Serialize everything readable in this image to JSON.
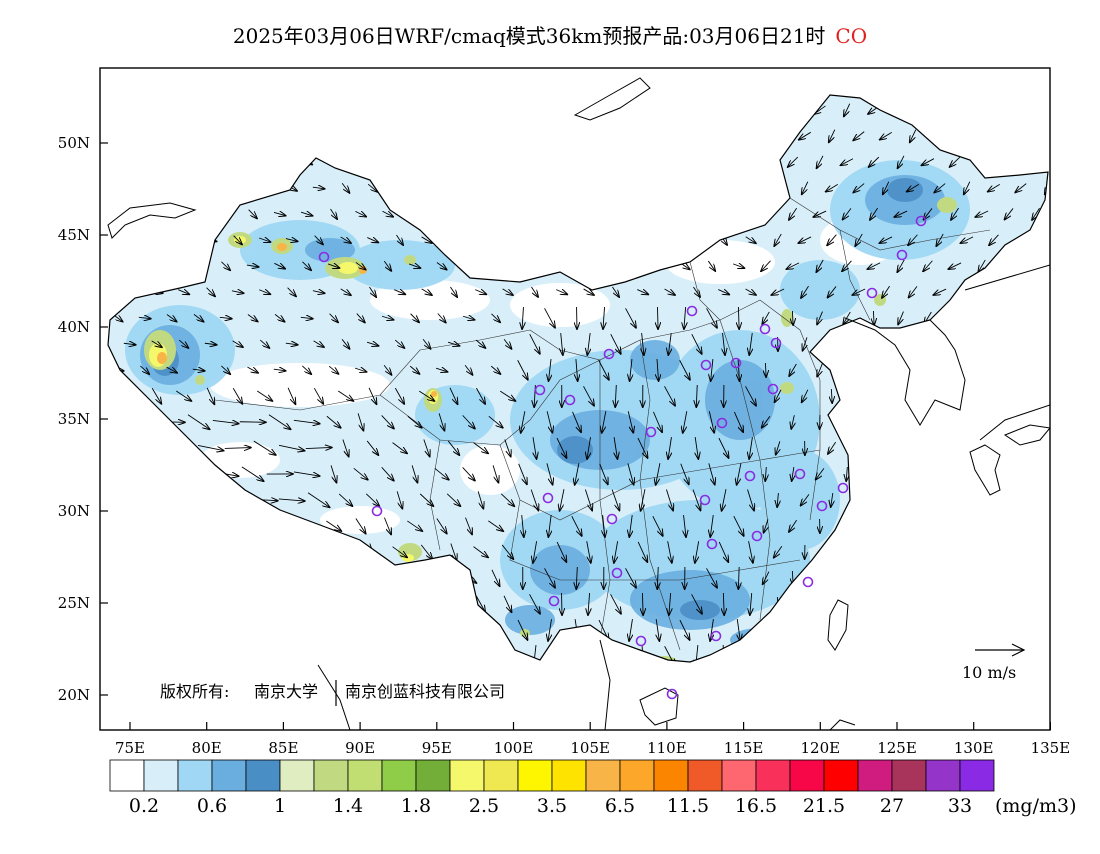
{
  "title": {
    "main": "2025年03月06日WRF/cmaq模式36km预报产品:03月06日21时",
    "species": "CO"
  },
  "copyright": {
    "prefix": "版权所有:",
    "org1": "南京大学",
    "org2": "南京创蓝科技有限公司"
  },
  "wind_reference": {
    "label": "10 m/s"
  },
  "axes": {
    "lat_labels": [
      "20N",
      "25N",
      "30N",
      "35N",
      "40N",
      "45N",
      "50N"
    ],
    "lon_labels": [
      "75E",
      "80E",
      "85E",
      "90E",
      "95E",
      "100E",
      "105E",
      "110E",
      "115E",
      "120E",
      "125E",
      "130E",
      "135E"
    ]
  },
  "colorbar": {
    "colors": [
      "#ffffff",
      "#d8effa",
      "#9fd7f4",
      "#6aaee0",
      "#4a8ec6",
      "#e0edc0",
      "#c1da82",
      "#c1de72",
      "#8fcc48",
      "#72ae38",
      "#f4f86a",
      "#f0e850",
      "#fef600",
      "#fee200",
      "#f8b446",
      "#fca62a",
      "#fc8500",
      "#f05a28",
      "#fe6670",
      "#f8305a",
      "#f80748",
      "#fe0000",
      "#d01c7e",
      "#a8345c",
      "#9434c8",
      "#8a2ae4"
    ],
    "labels": [
      "0.2",
      "0.6",
      "1",
      "1.4",
      "1.8",
      "2.5",
      "3.5",
      "6.5",
      "11.5",
      "16.5",
      "21.5",
      "27",
      "33"
    ],
    "unit": "(mg/m3)"
  }
}
